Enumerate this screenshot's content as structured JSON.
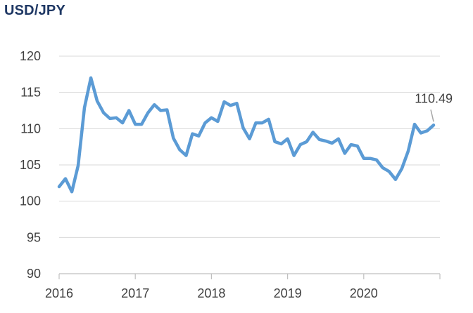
{
  "chart_data": {
    "type": "line",
    "title": "USD/JPY",
    "xlabel": "",
    "ylabel": "",
    "ylim": [
      90,
      120
    ],
    "yticks": [
      90,
      95,
      100,
      105,
      110,
      115,
      120
    ],
    "xlim": [
      2016,
      2021
    ],
    "xticks": [
      2016,
      2017,
      2018,
      2019,
      2020
    ],
    "grid": "horizontal",
    "legend": "none",
    "line_color": "#5b9bd5",
    "grid_color": "#d9d9d9",
    "axis_color": "#bfbfbf",
    "title_color": "#1f3864",
    "series": [
      {
        "x": [
          2016.0,
          2016.083,
          2016.167,
          2016.25,
          2016.333,
          2016.417,
          2016.5,
          2016.583,
          2016.667,
          2016.75,
          2016.833,
          2016.917,
          2017.0,
          2017.083,
          2017.167,
          2017.25,
          2017.333,
          2017.417,
          2017.5,
          2017.583,
          2017.667,
          2017.75,
          2017.833,
          2017.917,
          2018.0,
          2018.083,
          2018.167,
          2018.25,
          2018.333,
          2018.417,
          2018.5,
          2018.583,
          2018.667,
          2018.75,
          2018.833,
          2018.917,
          2019.0,
          2019.083,
          2019.167,
          2019.25,
          2019.333,
          2019.417,
          2019.5,
          2019.583,
          2019.667,
          2019.75,
          2019.833,
          2019.917,
          2020.0,
          2020.083,
          2020.167,
          2020.25,
          2020.333,
          2020.417,
          2020.5,
          2020.583,
          2020.667,
          2020.75,
          2020.833,
          2020.917
        ],
        "values": [
          102.0,
          103.1,
          101.3,
          104.9,
          112.9,
          117.0,
          113.8,
          112.2,
          111.4,
          111.5,
          110.8,
          112.5,
          110.6,
          110.6,
          112.2,
          113.3,
          112.5,
          112.6,
          108.7,
          107.1,
          106.3,
          109.3,
          109.0,
          110.8,
          111.5,
          111.0,
          113.7,
          113.2,
          113.5,
          110.1,
          108.6,
          110.8,
          110.8,
          111.3,
          108.2,
          107.9,
          108.6,
          106.3,
          107.8,
          108.2,
          109.5,
          108.5,
          108.3,
          108.0,
          108.6,
          106.6,
          107.8,
          107.6,
          105.9,
          105.9,
          105.7,
          104.6,
          104.1,
          103.0,
          104.5,
          106.9,
          110.6,
          109.4,
          109.7,
          110.49
        ]
      }
    ],
    "annotations": [
      {
        "text": "110.49",
        "x": 2020.917,
        "y": 110.49
      }
    ]
  }
}
